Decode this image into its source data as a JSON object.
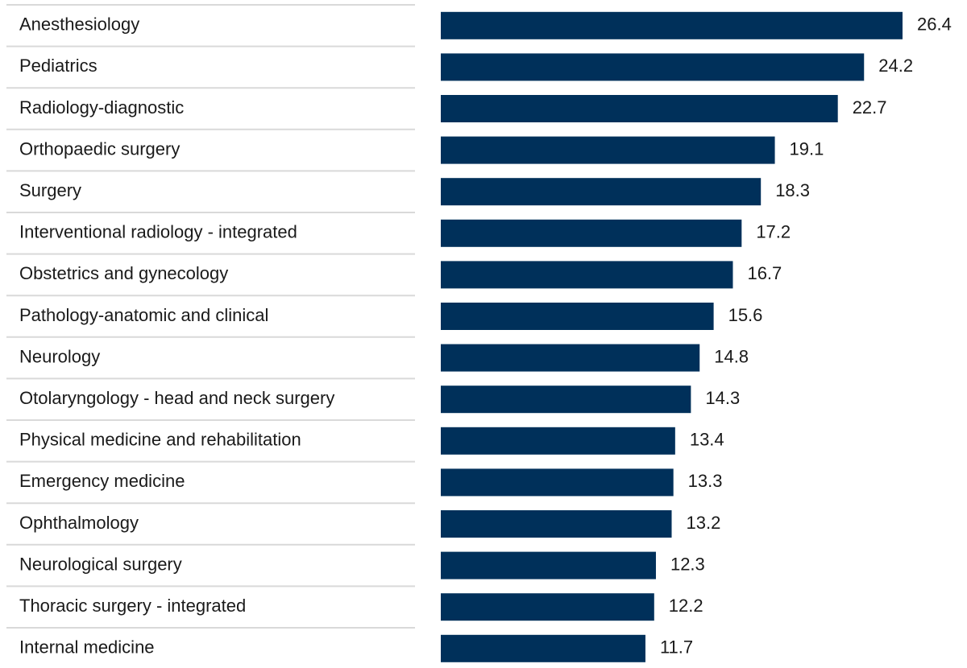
{
  "chart_data": {
    "type": "bar",
    "orientation": "horizontal",
    "title": "",
    "xlabel": "",
    "ylabel": "",
    "categories": [
      "Anesthesiology",
      "Pediatrics",
      "Radiology-diagnostic",
      "Orthopaedic surgery",
      "Surgery",
      "Interventional radiology - integrated",
      "Obstetrics and gynecology",
      "Pathology-anatomic and clinical",
      "Neurology",
      "Otolaryngology - head and neck surgery",
      "Physical medicine and rehabilitation",
      "Emergency medicine",
      "Ophthalmology",
      "Neurological surgery",
      "Thoracic surgery - integrated",
      "Internal medicine"
    ],
    "values": [
      26.4,
      24.2,
      22.7,
      19.1,
      18.3,
      17.2,
      16.7,
      15.6,
      14.8,
      14.3,
      13.4,
      13.3,
      13.2,
      12.3,
      12.2,
      11.7
    ],
    "value_labels": [
      "26.4",
      "24.2",
      "22.7",
      "19.1",
      "18.3",
      "17.2",
      "16.7",
      "15.6",
      "14.8",
      "14.3",
      "13.4",
      "13.3",
      "13.2",
      "12.3",
      "12.2",
      "11.7"
    ],
    "xlim": [
      0,
      26.4
    ],
    "grid": false,
    "bar_color": "#00305a"
  }
}
